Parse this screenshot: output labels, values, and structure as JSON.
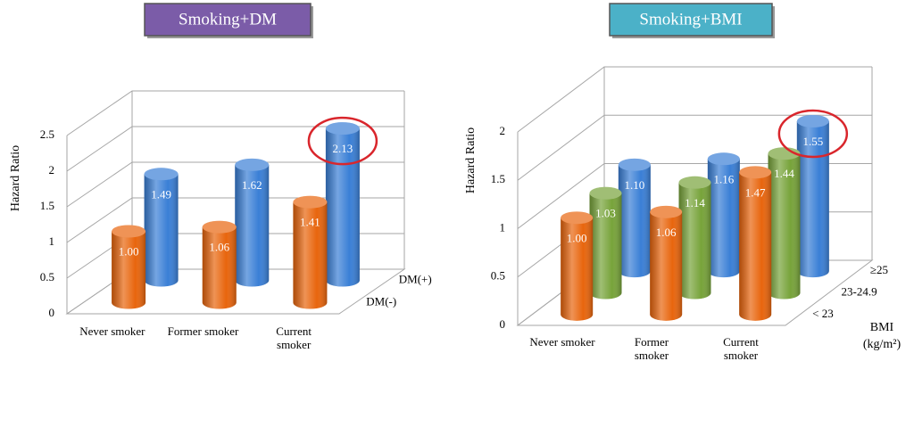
{
  "chart_data": [
    {
      "type": "bar3d",
      "title": "Smoking+DM",
      "title_background": "#7b5ca8",
      "y_label": "Hazard Ratio",
      "categories": [
        "Never smoker",
        "Former smoker",
        "Current\nsmoker"
      ],
      "series": [
        {
          "name": "DM(-)",
          "color": "#e8650d",
          "values": [
            1.0,
            1.06,
            1.41
          ],
          "value_labels": [
            "1.00",
            "1.06",
            "1.41"
          ]
        },
        {
          "name": "DM(+)",
          "color": "#3a7fd6",
          "values": [
            1.49,
            1.62,
            2.13
          ],
          "value_labels": [
            "1.49",
            "1.62",
            "2.13"
          ]
        }
      ],
      "ylim": [
        0,
        2.5
      ],
      "yticks": [
        0,
        0.5,
        1,
        1.5,
        2,
        2.5
      ],
      "grid": true
    },
    {
      "type": "bar3d",
      "title": "Smoking+BMI",
      "title_background": "#4bb1c8",
      "y_label": "Hazard Ratio",
      "depth_title": "BMI",
      "depth_unit": "(kg/m²)",
      "categories": [
        "Never smoker",
        "Former\nsmoker",
        "Current\nsmoker"
      ],
      "series": [
        {
          "name": "< 23",
          "color": "#e8650d",
          "values": [
            1.0,
            1.06,
            1.47
          ],
          "value_labels": [
            "1.00",
            "1.06",
            "1.47"
          ]
        },
        {
          "name": "23-24.9",
          "color": "#77a33a",
          "values": [
            1.03,
            1.14,
            1.44
          ],
          "value_labels": [
            "1.03",
            "1.14",
            "1.44"
          ]
        },
        {
          "name": "≥25",
          "color": "#3a7fd6",
          "values": [
            1.1,
            1.16,
            1.55
          ],
          "value_labels": [
            "1.10",
            "1.16",
            "1.55"
          ]
        }
      ],
      "ylim": [
        0,
        2
      ],
      "yticks": [
        0,
        0.5,
        1,
        1.5,
        2
      ],
      "grid": true
    }
  ]
}
